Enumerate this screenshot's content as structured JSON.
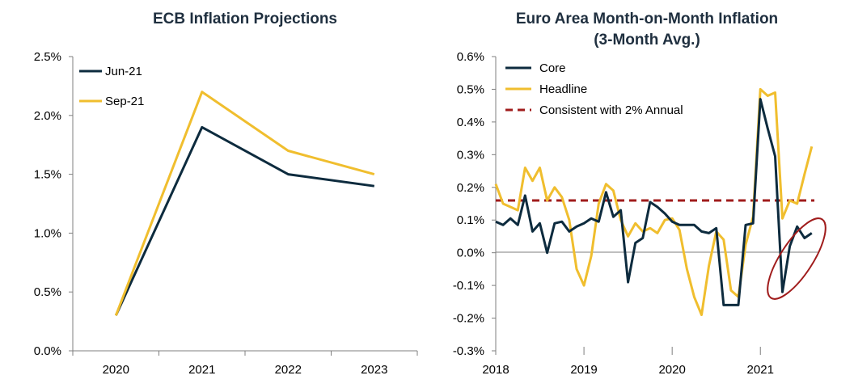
{
  "colors": {
    "core_navy": "#0d2b3e",
    "headline_gold": "#f0be2e",
    "reference_red": "#a01c1c",
    "axis": "#7f7f7f",
    "title": "#1f2f3f"
  },
  "chart_data": [
    {
      "type": "line",
      "title": "ECB Inflation Projections",
      "categories": [
        "2020",
        "2021",
        "2022",
        "2023"
      ],
      "y_tick_labels": [
        "2.5%",
        "2.0%",
        "1.5%",
        "1.0%",
        "0.5%",
        "0.0%"
      ],
      "ylim": [
        0,
        2.5
      ],
      "y_ticks": [
        2.5,
        2.0,
        1.5,
        1.0,
        0.5,
        0.0
      ],
      "xlabel": "",
      "ylabel": "",
      "grid": false,
      "legend": "top-left",
      "series": [
        {
          "name": "Jun-21",
          "color": "#0d2b3e",
          "values": [
            0.3,
            1.9,
            1.5,
            1.4
          ]
        },
        {
          "name": "Sep-21",
          "color": "#f0be2e",
          "values": [
            0.3,
            2.2,
            1.7,
            1.5
          ]
        }
      ]
    },
    {
      "type": "line",
      "title": "Euro Area Month-on-Month Inflation",
      "subtitle": "(3-Month Avg.)",
      "x_tick_labels": [
        "2018",
        "2019",
        "2020",
        "2021"
      ],
      "x_ticks": [
        2018,
        2019,
        2020,
        2021
      ],
      "xlim": [
        2018,
        2021.667
      ],
      "y_tick_labels": [
        "0.6%",
        "0.5%",
        "0.4%",
        "0.3%",
        "0.2%",
        "0.1%",
        "0.0%",
        "-0.1%",
        "-0.2%",
        "-0.3%"
      ],
      "y_ticks": [
        0.6,
        0.5,
        0.4,
        0.3,
        0.2,
        0.1,
        0.0,
        -0.1,
        -0.2,
        -0.3
      ],
      "ylim": [
        -0.3,
        0.6
      ],
      "xlabel": "",
      "ylabel": "",
      "grid": false,
      "legend": "top-left",
      "annotation": "ellipse highlighting the latest Core readings (2021)",
      "x": [
        2018.0,
        2018.083,
        2018.167,
        2018.25,
        2018.333,
        2018.417,
        2018.5,
        2018.583,
        2018.667,
        2018.75,
        2018.833,
        2018.917,
        2019.0,
        2019.083,
        2019.167,
        2019.25,
        2019.333,
        2019.417,
        2019.5,
        2019.583,
        2019.667,
        2019.75,
        2019.833,
        2019.917,
        2020.0,
        2020.083,
        2020.167,
        2020.25,
        2020.333,
        2020.417,
        2020.5,
        2020.583,
        2020.667,
        2020.75,
        2020.833,
        2020.917,
        2021.0,
        2021.083,
        2021.167,
        2021.25,
        2021.333,
        2021.417,
        2021.5,
        2021.583,
        2021.667
      ],
      "series": [
        {
          "name": "Core",
          "color": "#0d2b3e",
          "values": [
            0.095,
            0.085,
            0.105,
            0.085,
            0.175,
            0.065,
            0.09,
            0.0,
            0.09,
            0.095,
            0.065,
            0.08,
            0.09,
            0.105,
            0.095,
            0.185,
            0.11,
            0.13,
            -0.09,
            0.03,
            0.045,
            0.155,
            0.14,
            0.12,
            0.095,
            0.085,
            0.085,
            0.085,
            0.065,
            0.06,
            0.075,
            -0.16,
            -0.16,
            -0.16,
            0.085,
            0.09,
            0.47,
            0.38,
            0.295,
            -0.12,
            0.02,
            0.08,
            0.045,
            0.06,
            null
          ]
        },
        {
          "name": "Headline",
          "color": "#f0be2e",
          "values": [
            0.21,
            0.15,
            0.14,
            0.13,
            0.26,
            0.22,
            0.26,
            0.16,
            0.2,
            0.17,
            0.1,
            -0.05,
            -0.1,
            -0.01,
            0.15,
            0.21,
            0.19,
            0.1,
            0.05,
            0.09,
            0.065,
            0.075,
            0.06,
            0.1,
            0.105,
            0.07,
            -0.05,
            -0.135,
            -0.19,
            -0.04,
            0.065,
            0.04,
            -0.115,
            -0.135,
            0.025,
            0.11,
            0.5,
            0.48,
            0.49,
            0.105,
            0.16,
            0.15,
            0.24,
            0.325,
            null
          ]
        },
        {
          "name": "Consistent with 2% Annual",
          "color": "#a01c1c",
          "style": "dashed",
          "constant": 0.16
        }
      ]
    }
  ]
}
